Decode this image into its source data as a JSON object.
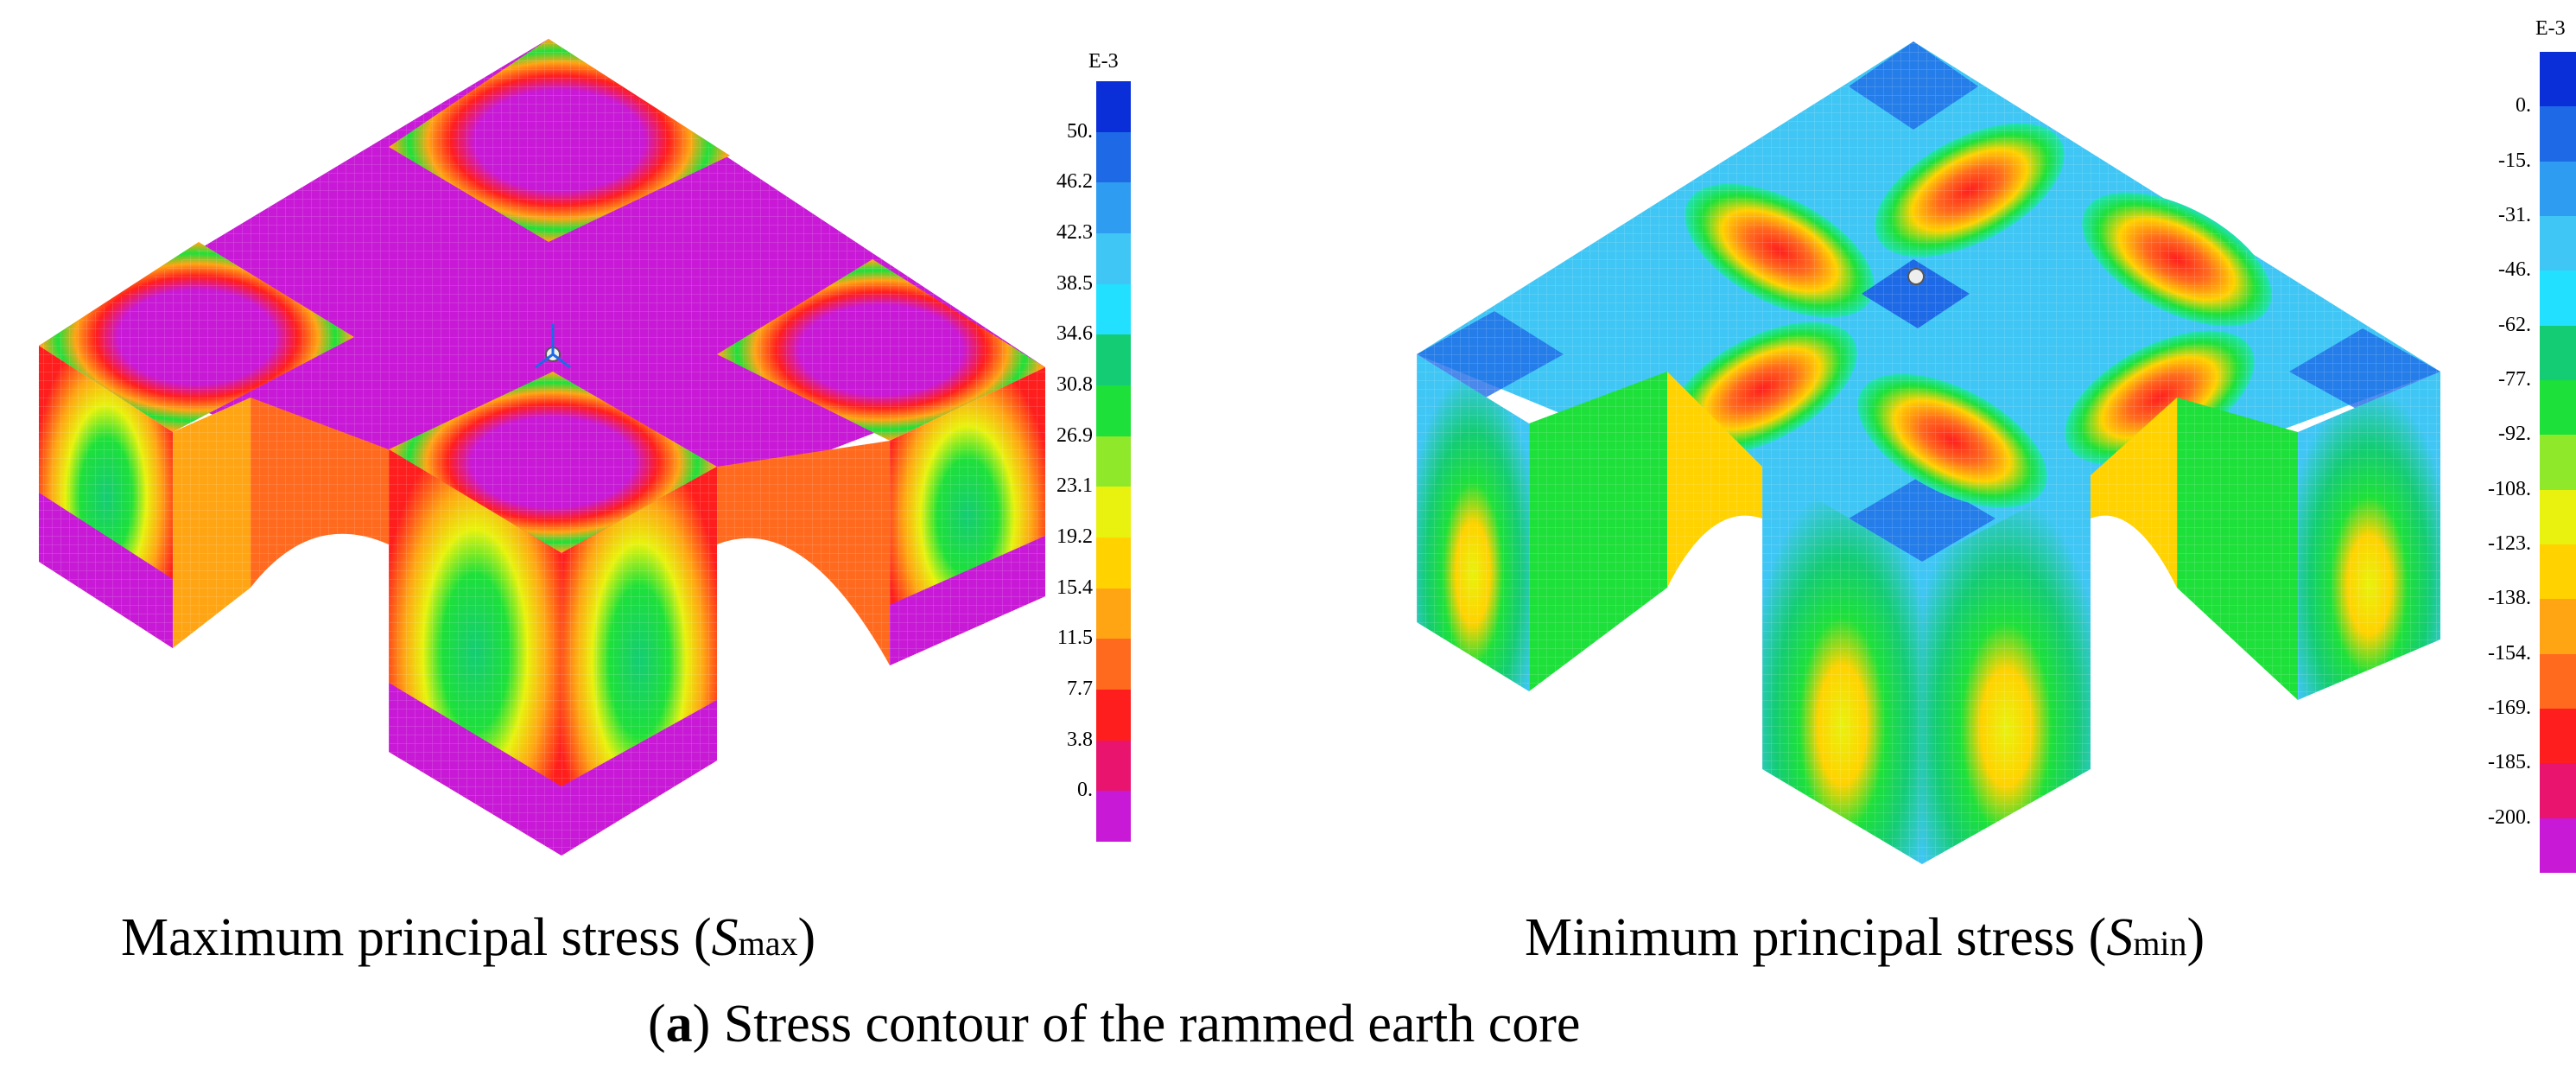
{
  "figure": {
    "caption_label": "a",
    "caption_text": "Stress contour of the rammed earth core"
  },
  "panels": [
    {
      "caption_prefix": "Maximum principal stress (",
      "caption_symbol": "S",
      "caption_subscript": "max",
      "caption_suffix": ")",
      "colorbar": {
        "exponent_label": "E-3",
        "labels": [
          "50.",
          "46.2",
          "42.3",
          "38.5",
          "34.6",
          "30.8",
          "26.9",
          "23.1",
          "19.2",
          "15.4",
          "11.5",
          "7.7",
          "3.8",
          "0."
        ],
        "colors": [
          "#0a2fd8",
          "#1e6ae6",
          "#2e9cf0",
          "#3fc6f5",
          "#22e0ff",
          "#14cc74",
          "#1ee03a",
          "#8fe82a",
          "#e8f20e",
          "#ffd200",
          "#ffa514",
          "#ff6a1e",
          "#ff1e1e",
          "#e8146e",
          "#c81ad6"
        ]
      }
    },
    {
      "caption_prefix": "Minimum principal stress (",
      "caption_symbol": "S",
      "caption_subscript": "min",
      "caption_suffix": ")",
      "colorbar": {
        "exponent_label": "E-3",
        "labels": [
          "0.",
          "-15.",
          "-31.",
          "-46.",
          "-62.",
          "-77.",
          "-92.",
          "-108.",
          "-123.",
          "-138.",
          "-154.",
          "-169.",
          "-185.",
          "-200."
        ],
        "colors": [
          "#0a2fd8",
          "#1e6ae6",
          "#2e9cf0",
          "#3fc6f5",
          "#22e0ff",
          "#14cc74",
          "#1ee03a",
          "#8fe82a",
          "#e8f20e",
          "#ffd200",
          "#ffa514",
          "#ff6a1e",
          "#ff1e1e",
          "#e8146e",
          "#c81ad6"
        ]
      }
    }
  ]
}
